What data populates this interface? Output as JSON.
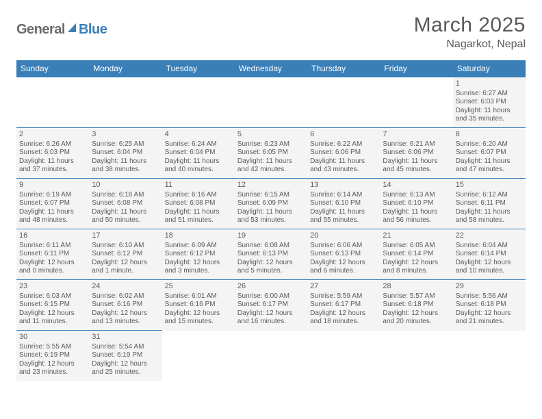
{
  "logo": {
    "part1": "General",
    "part2": "Blue"
  },
  "title": "March 2025",
  "location": "Nagarkot, Nepal",
  "dayHeaders": [
    "Sunday",
    "Monday",
    "Tuesday",
    "Wednesday",
    "Thursday",
    "Friday",
    "Saturday"
  ],
  "colors": {
    "headerBg": "#3a7fb8",
    "headerText": "#ffffff",
    "cellBg": "#f4f4f4",
    "borderColor": "#3a7fb8",
    "textColor": "#5a5a5a",
    "logoGray": "#6a6a6a",
    "logoBlue": "#3a7fb8"
  },
  "weeks": [
    [
      null,
      null,
      null,
      null,
      null,
      null,
      {
        "n": "1",
        "sr": "Sunrise: 6:27 AM",
        "ss": "Sunset: 6:03 PM",
        "d1": "Daylight: 11 hours",
        "d2": "and 35 minutes."
      }
    ],
    [
      {
        "n": "2",
        "sr": "Sunrise: 6:26 AM",
        "ss": "Sunset: 6:03 PM",
        "d1": "Daylight: 11 hours",
        "d2": "and 37 minutes."
      },
      {
        "n": "3",
        "sr": "Sunrise: 6:25 AM",
        "ss": "Sunset: 6:04 PM",
        "d1": "Daylight: 11 hours",
        "d2": "and 38 minutes."
      },
      {
        "n": "4",
        "sr": "Sunrise: 6:24 AM",
        "ss": "Sunset: 6:04 PM",
        "d1": "Daylight: 11 hours",
        "d2": "and 40 minutes."
      },
      {
        "n": "5",
        "sr": "Sunrise: 6:23 AM",
        "ss": "Sunset: 6:05 PM",
        "d1": "Daylight: 11 hours",
        "d2": "and 42 minutes."
      },
      {
        "n": "6",
        "sr": "Sunrise: 6:22 AM",
        "ss": "Sunset: 6:06 PM",
        "d1": "Daylight: 11 hours",
        "d2": "and 43 minutes."
      },
      {
        "n": "7",
        "sr": "Sunrise: 6:21 AM",
        "ss": "Sunset: 6:06 PM",
        "d1": "Daylight: 11 hours",
        "d2": "and 45 minutes."
      },
      {
        "n": "8",
        "sr": "Sunrise: 6:20 AM",
        "ss": "Sunset: 6:07 PM",
        "d1": "Daylight: 11 hours",
        "d2": "and 47 minutes."
      }
    ],
    [
      {
        "n": "9",
        "sr": "Sunrise: 6:19 AM",
        "ss": "Sunset: 6:07 PM",
        "d1": "Daylight: 11 hours",
        "d2": "and 48 minutes."
      },
      {
        "n": "10",
        "sr": "Sunrise: 6:18 AM",
        "ss": "Sunset: 6:08 PM",
        "d1": "Daylight: 11 hours",
        "d2": "and 50 minutes."
      },
      {
        "n": "11",
        "sr": "Sunrise: 6:16 AM",
        "ss": "Sunset: 6:08 PM",
        "d1": "Daylight: 11 hours",
        "d2": "and 51 minutes."
      },
      {
        "n": "12",
        "sr": "Sunrise: 6:15 AM",
        "ss": "Sunset: 6:09 PM",
        "d1": "Daylight: 11 hours",
        "d2": "and 53 minutes."
      },
      {
        "n": "13",
        "sr": "Sunrise: 6:14 AM",
        "ss": "Sunset: 6:10 PM",
        "d1": "Daylight: 11 hours",
        "d2": "and 55 minutes."
      },
      {
        "n": "14",
        "sr": "Sunrise: 6:13 AM",
        "ss": "Sunset: 6:10 PM",
        "d1": "Daylight: 11 hours",
        "d2": "and 56 minutes."
      },
      {
        "n": "15",
        "sr": "Sunrise: 6:12 AM",
        "ss": "Sunset: 6:11 PM",
        "d1": "Daylight: 11 hours",
        "d2": "and 58 minutes."
      }
    ],
    [
      {
        "n": "16",
        "sr": "Sunrise: 6:11 AM",
        "ss": "Sunset: 6:11 PM",
        "d1": "Daylight: 12 hours",
        "d2": "and 0 minutes."
      },
      {
        "n": "17",
        "sr": "Sunrise: 6:10 AM",
        "ss": "Sunset: 6:12 PM",
        "d1": "Daylight: 12 hours",
        "d2": "and 1 minute."
      },
      {
        "n": "18",
        "sr": "Sunrise: 6:09 AM",
        "ss": "Sunset: 6:12 PM",
        "d1": "Daylight: 12 hours",
        "d2": "and 3 minutes."
      },
      {
        "n": "19",
        "sr": "Sunrise: 6:08 AM",
        "ss": "Sunset: 6:13 PM",
        "d1": "Daylight: 12 hours",
        "d2": "and 5 minutes."
      },
      {
        "n": "20",
        "sr": "Sunrise: 6:06 AM",
        "ss": "Sunset: 6:13 PM",
        "d1": "Daylight: 12 hours",
        "d2": "and 6 minutes."
      },
      {
        "n": "21",
        "sr": "Sunrise: 6:05 AM",
        "ss": "Sunset: 6:14 PM",
        "d1": "Daylight: 12 hours",
        "d2": "and 8 minutes."
      },
      {
        "n": "22",
        "sr": "Sunrise: 6:04 AM",
        "ss": "Sunset: 6:14 PM",
        "d1": "Daylight: 12 hours",
        "d2": "and 10 minutes."
      }
    ],
    [
      {
        "n": "23",
        "sr": "Sunrise: 6:03 AM",
        "ss": "Sunset: 6:15 PM",
        "d1": "Daylight: 12 hours",
        "d2": "and 11 minutes."
      },
      {
        "n": "24",
        "sr": "Sunrise: 6:02 AM",
        "ss": "Sunset: 6:16 PM",
        "d1": "Daylight: 12 hours",
        "d2": "and 13 minutes."
      },
      {
        "n": "25",
        "sr": "Sunrise: 6:01 AM",
        "ss": "Sunset: 6:16 PM",
        "d1": "Daylight: 12 hours",
        "d2": "and 15 minutes."
      },
      {
        "n": "26",
        "sr": "Sunrise: 6:00 AM",
        "ss": "Sunset: 6:17 PM",
        "d1": "Daylight: 12 hours",
        "d2": "and 16 minutes."
      },
      {
        "n": "27",
        "sr": "Sunrise: 5:59 AM",
        "ss": "Sunset: 6:17 PM",
        "d1": "Daylight: 12 hours",
        "d2": "and 18 minutes."
      },
      {
        "n": "28",
        "sr": "Sunrise: 5:57 AM",
        "ss": "Sunset: 6:18 PM",
        "d1": "Daylight: 12 hours",
        "d2": "and 20 minutes."
      },
      {
        "n": "29",
        "sr": "Sunrise: 5:56 AM",
        "ss": "Sunset: 6:18 PM",
        "d1": "Daylight: 12 hours",
        "d2": "and 21 minutes."
      }
    ],
    [
      {
        "n": "30",
        "sr": "Sunrise: 5:55 AM",
        "ss": "Sunset: 6:19 PM",
        "d1": "Daylight: 12 hours",
        "d2": "and 23 minutes."
      },
      {
        "n": "31",
        "sr": "Sunrise: 5:54 AM",
        "ss": "Sunset: 6:19 PM",
        "d1": "Daylight: 12 hours",
        "d2": "and 25 minutes."
      },
      null,
      null,
      null,
      null,
      null
    ]
  ]
}
